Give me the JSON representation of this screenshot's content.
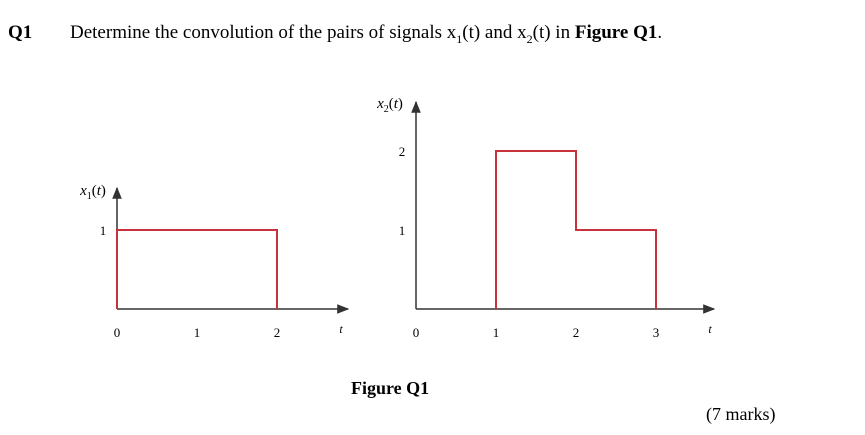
{
  "question": {
    "number": "Q1",
    "text_before": "Determine the convolution of the pairs of signals x",
    "sub1": "1",
    "text_mid1": "(t) and x",
    "sub2": "2",
    "text_mid2": "(t) in ",
    "text_bold": "Figure Q1",
    "text_end": "."
  },
  "figure": {
    "caption": "Figure Q1",
    "signal_color": "#c8323c",
    "axis_color": "#333333"
  },
  "marks": "(7 marks)",
  "chart_data": [
    {
      "type": "line",
      "title": "",
      "ylabel": "x1(t)",
      "xlabel": "t",
      "x_ticks": [
        "0",
        "1",
        "2"
      ],
      "y_ticks": [
        "1"
      ],
      "series": [
        {
          "x": [
            0,
            0,
            2,
            2
          ],
          "y": [
            0,
            1,
            1,
            0
          ]
        }
      ]
    },
    {
      "type": "line",
      "title": "",
      "ylabel": "x2(t)",
      "xlabel": "t",
      "x_ticks": [
        "0",
        "1",
        "2",
        "3"
      ],
      "y_ticks": [
        "1",
        "2"
      ],
      "series": [
        {
          "x": [
            1,
            1,
            2,
            2,
            3,
            3
          ],
          "y": [
            0,
            2,
            2,
            1,
            1,
            0
          ]
        }
      ]
    }
  ]
}
